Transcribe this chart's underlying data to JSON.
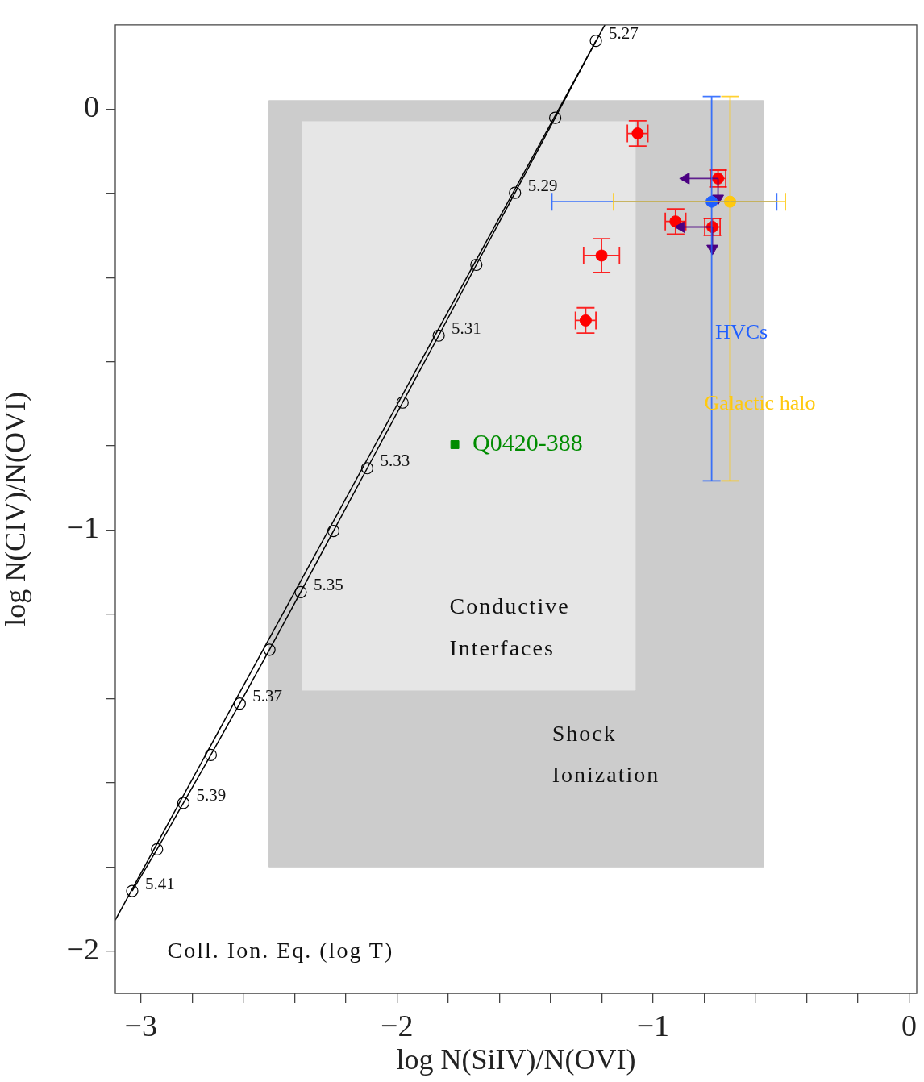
{
  "chart_data": {
    "type": "scatter",
    "xlabel": "log N(SiIV)/N(OVI)",
    "ylabel": "log N(CIV)/N(OVI)",
    "xlim": [
      -3.1,
      0.03
    ],
    "ylim": [
      -2.1,
      0.2
    ],
    "xticks": [
      {
        "value": -3,
        "label": "−3"
      },
      {
        "value": -2.8,
        "label": null
      },
      {
        "value": -2.6,
        "label": null
      },
      {
        "value": -2.4,
        "label": null
      },
      {
        "value": -2.2,
        "label": null
      },
      {
        "value": -2,
        "label": "−2"
      },
      {
        "value": -1.8,
        "label": null
      },
      {
        "value": -1.6,
        "label": null
      },
      {
        "value": -1.4,
        "label": null
      },
      {
        "value": -1.2,
        "label": null
      },
      {
        "value": -1,
        "label": "−1"
      },
      {
        "value": -0.8,
        "label": null
      },
      {
        "value": -0.6,
        "label": null
      },
      {
        "value": -0.4,
        "label": null
      },
      {
        "value": -0.2,
        "label": null
      },
      {
        "value": 0,
        "label": "0"
      }
    ],
    "yticks": [
      {
        "value": -2,
        "label": "−2"
      },
      {
        "value": -1.8,
        "label": null
      },
      {
        "value": -1.6,
        "label": null
      },
      {
        "value": -1.4,
        "label": null
      },
      {
        "value": -1.2,
        "label": null
      },
      {
        "value": -1,
        "label": "−1"
      },
      {
        "value": -0.8,
        "label": null
      },
      {
        "value": -0.6,
        "label": null
      },
      {
        "value": -0.4,
        "label": null
      },
      {
        "value": -0.2,
        "label": null
      },
      {
        "value": 0,
        "label": "0"
      }
    ],
    "grid": false,
    "legend": false,
    "series": [
      {
        "type": "area",
        "color": "#cccccc",
        "x": [
          -2.5,
          -2.5,
          -0.57,
          -0.57,
          -2.5
        ],
        "values": [
          -1.8,
          0.02,
          0.02,
          -1.8,
          -1.8
        ]
      },
      {
        "type": "area",
        "color": "#e6e6e6",
        "x": [
          -2.37,
          -2.37,
          -1.07,
          -1.07,
          -2.37
        ],
        "values": [
          -1.38,
          -0.03,
          -0.03,
          -1.38,
          -1.38
        ]
      },
      {
        "type": "line",
        "color": "#000000",
        "marker": "none",
        "x": [
          -3.1,
          -1.188
        ],
        "values": [
          -1.926,
          0.2
        ]
      },
      {
        "type": "line",
        "color": "#000000",
        "marker": "circle",
        "x": [
          -1.223,
          -1.382,
          -1.539,
          -1.69,
          -1.837,
          -1.978,
          -2.116,
          -2.248,
          -2.376,
          -2.498,
          -2.614,
          -2.727,
          -2.834,
          -2.937,
          -3.034
        ],
        "values": [
          0.162,
          -0.021,
          -0.199,
          -0.37,
          -0.538,
          -0.697,
          -0.853,
          -1.002,
          -1.147,
          -1.284,
          -1.412,
          -1.534,
          -1.648,
          -1.758,
          -1.857
        ]
      },
      {
        "color": "#ff0000",
        "marker": "circle",
        "x": [
          -1.06,
          -0.746,
          -0.912,
          -0.768,
          -1.201,
          -1.263
        ],
        "values": [
          -0.058,
          -0.165,
          -0.267,
          -0.28,
          -0.348,
          -0.502
        ],
        "errors": [
          0.03,
          0.02,
          0.03,
          0.02,
          0.04,
          0.03
        ],
        "xerrors": [
          0.04,
          0.03,
          0.04,
          0.03,
          0.07,
          0.04
        ]
      },
      {
        "color": "#4b0082",
        "marker": "triangle",
        "x": [
          -0.871,
          -0.89,
          -0.746,
          -0.768
        ],
        "values": [
          -0.165,
          -0.28,
          -0.212,
          -0.331
        ],
        "xerrors": [
          [
            -0.871,
            -0.746
          ],
          [
            -0.89,
            -0.768
          ],
          null,
          null
        ],
        "errors": [
          null,
          null,
          [
            -0.212,
            -0.165
          ],
          [
            -0.331,
            -0.28
          ]
        ]
      },
      {
        "name": "HVCs",
        "color": "#1f5fff",
        "marker": "circle",
        "x": [
          -0.771
        ],
        "values": [
          -0.22
        ],
        "xerrors": [
          [
            -1.395,
            -0.517
          ]
        ],
        "errors": [
          [
            -0.883,
            0.03
          ]
        ]
      },
      {
        "name": "Galactic halo",
        "color": "#ffc90e",
        "marker": "circle",
        "x": [
          -0.699
        ],
        "values": [
          -0.22
        ],
        "xerrors": [
          [
            -1.154,
            -0.483
          ]
        ],
        "errors": [
          [
            -0.883,
            0.03
          ]
        ]
      },
      {
        "name": "Q0420-388",
        "color": "#008c00",
        "marker": "square",
        "x": [
          -1.774
        ],
        "values": [
          -0.797
        ]
      }
    ],
    "annotations": [
      {
        "text": "5.27",
        "x": -1.223,
        "y": 0.162
      },
      {
        "text": "5.29",
        "x": -1.539,
        "y": -0.199
      },
      {
        "text": "5.31",
        "x": -1.837,
        "y": -0.538
      },
      {
        "text": "5.33",
        "x": -2.116,
        "y": -0.853
      },
      {
        "text": "5.35",
        "x": -2.376,
        "y": -1.147
      },
      {
        "text": "5.37",
        "x": -2.614,
        "y": -1.412
      },
      {
        "text": "5.39",
        "x": -2.834,
        "y": -1.648
      },
      {
        "text": "5.41",
        "x": -3.034,
        "y": -1.857
      },
      "Coll. Ion. Eq. (log T)",
      "Conductive",
      "Interfaces",
      "Shock",
      "Ionization"
    ]
  }
}
